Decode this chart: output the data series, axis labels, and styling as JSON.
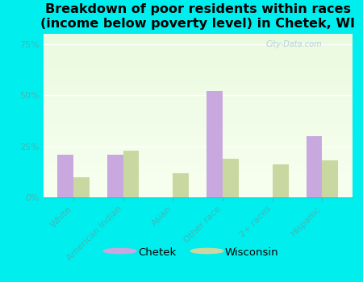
{
  "title": "Breakdown of poor residents within races\n(income below poverty level) in Chetek, WI",
  "categories": [
    "White",
    "American Indian",
    "Asian",
    "Other race",
    "2+ races",
    "Hispanic"
  ],
  "chetek_values": [
    21,
    21,
    0,
    52,
    0,
    30
  ],
  "wisconsin_values": [
    10,
    23,
    12,
    19,
    16,
    18
  ],
  "chetek_color": "#c9a8e0",
  "wisconsin_color": "#c8d8a0",
  "bar_width": 0.32,
  "ylim": [
    0,
    80
  ],
  "yticks": [
    0,
    25,
    50,
    75
  ],
  "ytick_labels": [
    "0%",
    "25%",
    "50%",
    "75%"
  ],
  "legend_labels": [
    "Chetek",
    "Wisconsin"
  ],
  "outer_bg": "#00eeee",
  "plot_bg_top": "#eafae0",
  "plot_bg_bottom": "#f8fff0",
  "title_fontsize": 11.5,
  "tick_fontsize": 8,
  "tick_color": "#40b8b8",
  "watermark_text": "City-Data.com",
  "watermark_color": "#b0ccd8"
}
